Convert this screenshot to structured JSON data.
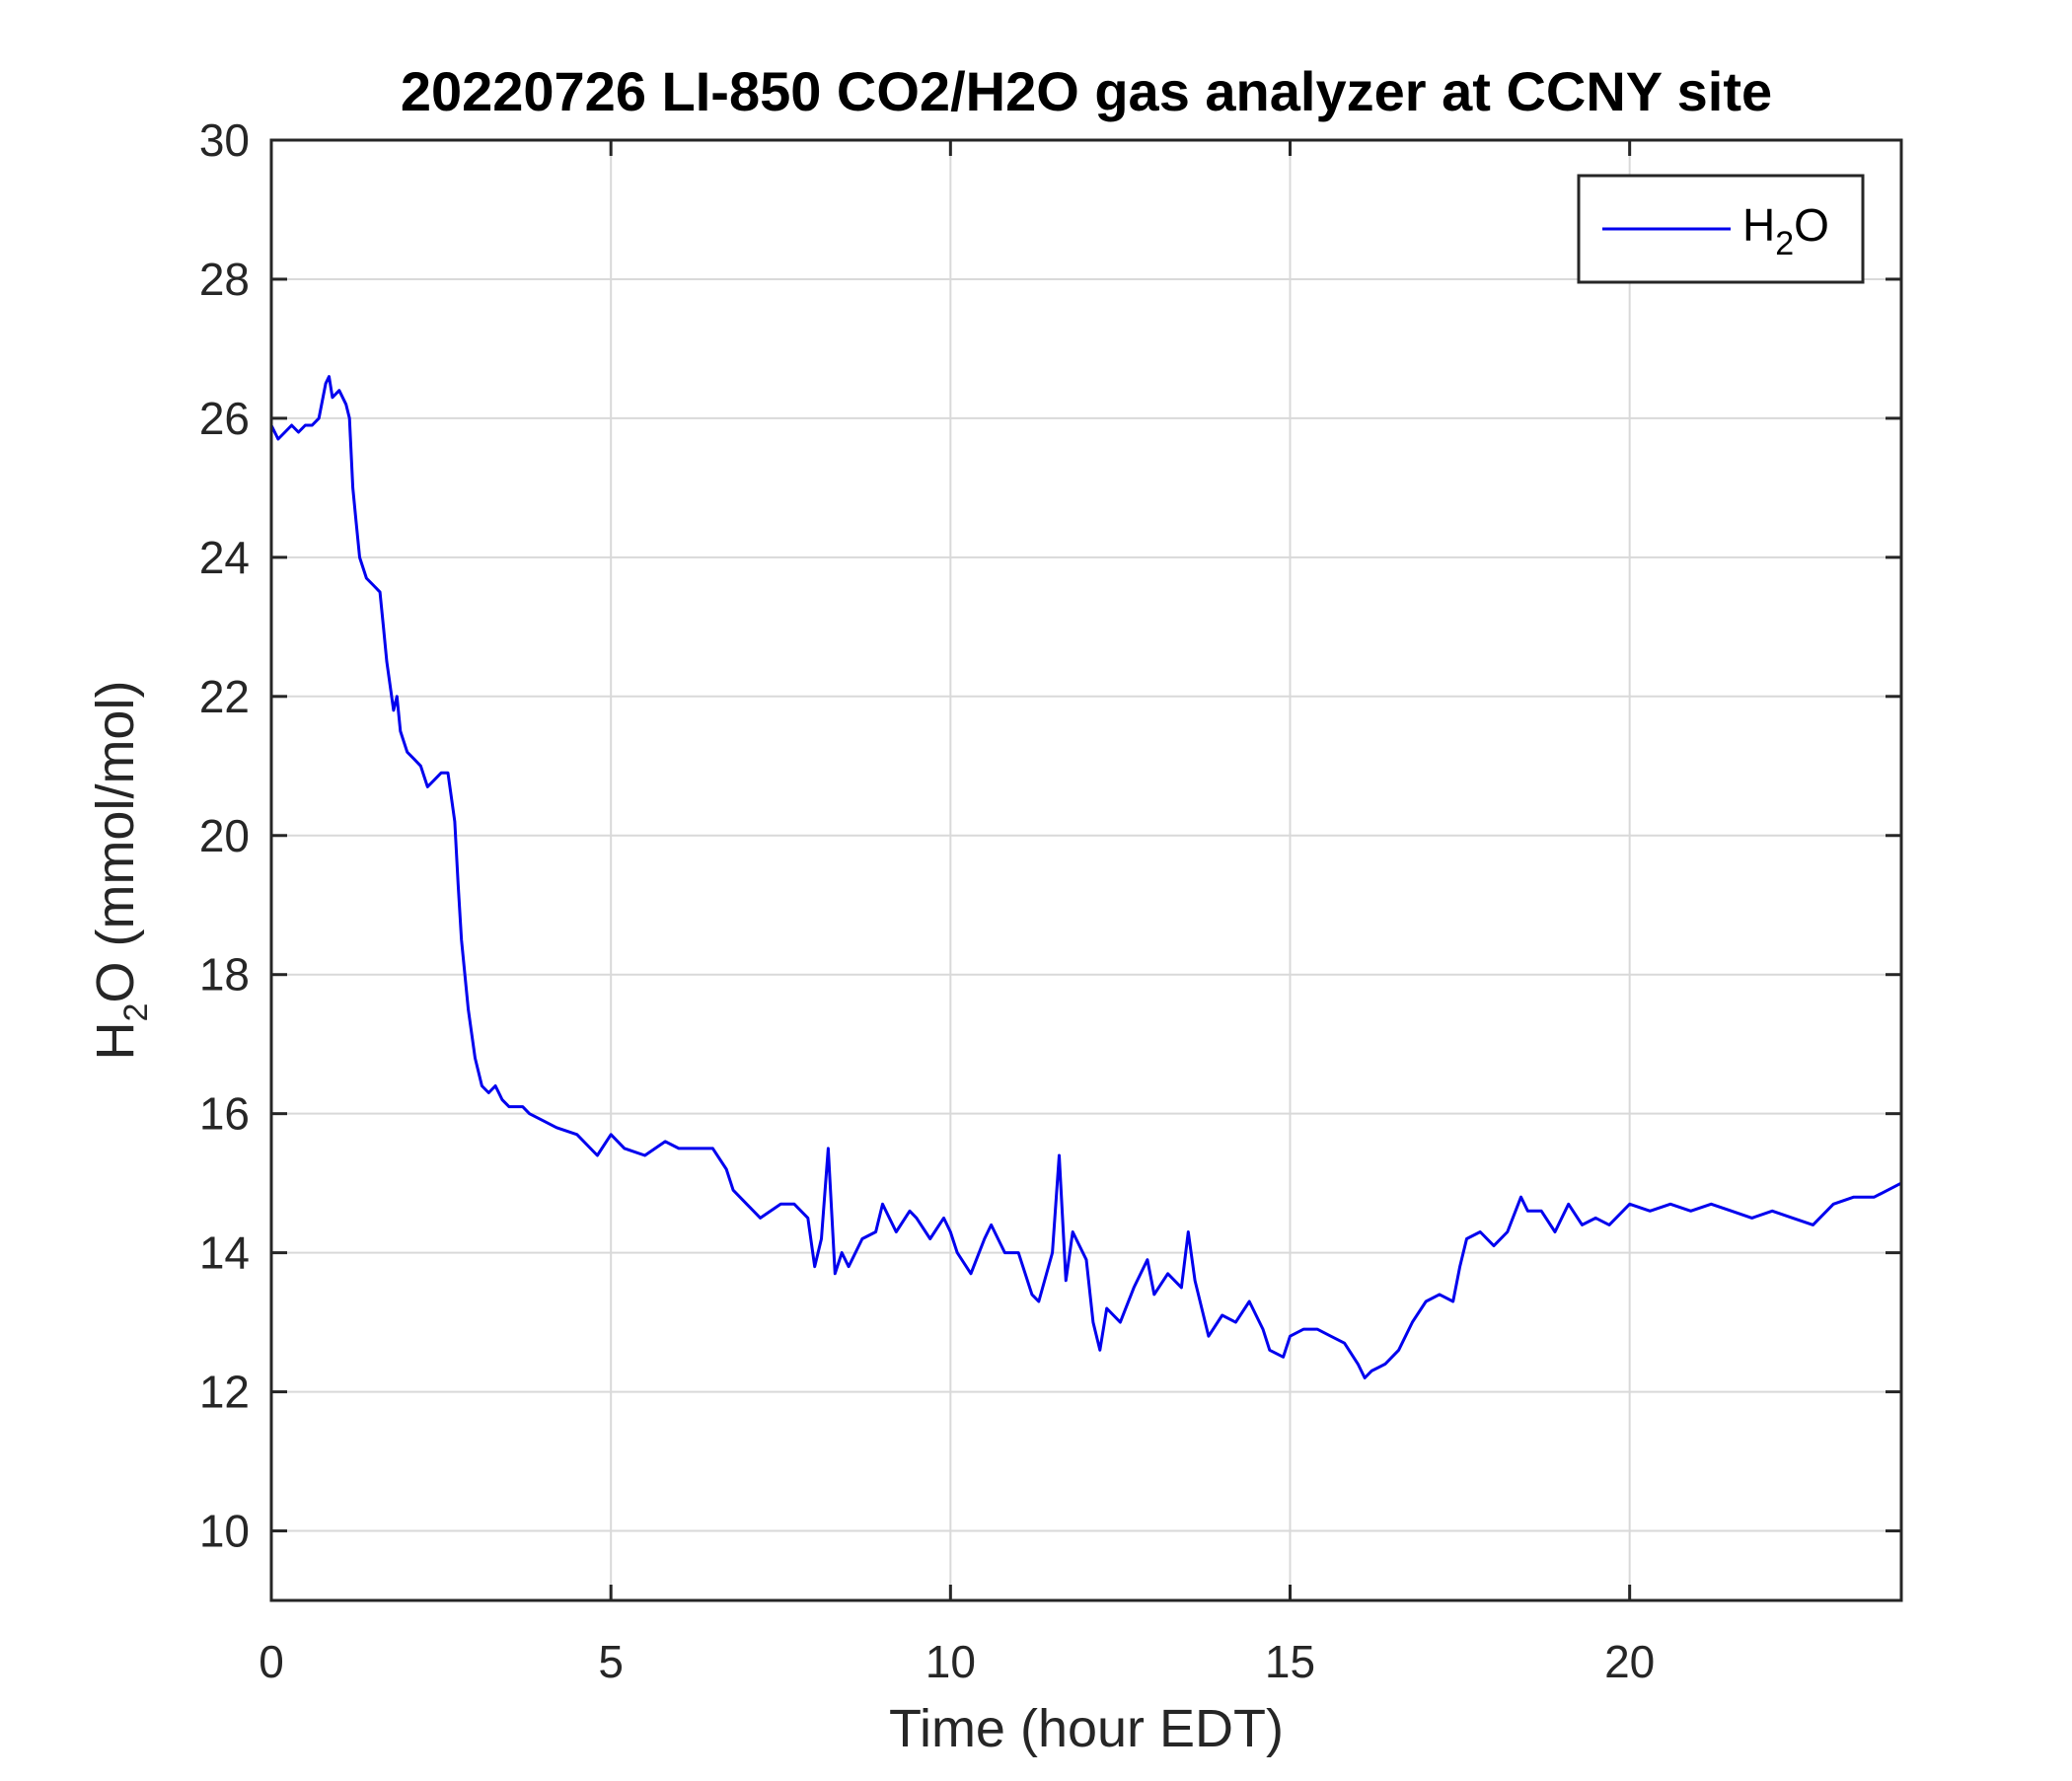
{
  "chart_data": {
    "type": "line",
    "title": "20220726 LI-850 CO2/H2O gas analyzer at CCNY site",
    "xlabel": "Time (hour EDT)",
    "ylabel": {
      "main": "H",
      "sub": "2",
      "rest": "O (mmol/mol)"
    },
    "xlim": [
      0,
      24
    ],
    "ylim": [
      9,
      30
    ],
    "xticks": [
      0,
      5,
      10,
      15,
      20
    ],
    "yticks": [
      10,
      12,
      14,
      16,
      18,
      20,
      22,
      24,
      26,
      28,
      30
    ],
    "grid": true,
    "legend": {
      "placement": "top-right",
      "entries": [
        {
          "main": "H",
          "sub": "2",
          "rest": "O"
        }
      ]
    },
    "colors": {
      "series": "#0000ee",
      "grid": "#d9d9d9",
      "axis": "#262626"
    },
    "series": [
      {
        "name": "H2O",
        "x": [
          0.0,
          0.1,
          0.2,
          0.3,
          0.4,
          0.5,
          0.6,
          0.7,
          0.8,
          0.85,
          0.9,
          1.0,
          1.1,
          1.15,
          1.2,
          1.25,
          1.3,
          1.4,
          1.5,
          1.6,
          1.65,
          1.7,
          1.8,
          1.85,
          1.9,
          2.0,
          2.1,
          2.2,
          2.3,
          2.4,
          2.5,
          2.6,
          2.7,
          2.75,
          2.8,
          2.9,
          3.0,
          3.1,
          3.2,
          3.3,
          3.4,
          3.5,
          3.7,
          3.8,
          4.0,
          4.2,
          4.5,
          4.8,
          5.0,
          5.2,
          5.5,
          5.8,
          6.0,
          6.3,
          6.5,
          6.7,
          6.8,
          7.0,
          7.2,
          7.5,
          7.7,
          7.9,
          8.0,
          8.1,
          8.2,
          8.3,
          8.4,
          8.5,
          8.7,
          8.9,
          9.0,
          9.2,
          9.4,
          9.5,
          9.7,
          9.9,
          10.0,
          10.1,
          10.3,
          10.5,
          10.6,
          10.8,
          11.0,
          11.2,
          11.3,
          11.5,
          11.6,
          11.7,
          11.8,
          12.0,
          12.1,
          12.2,
          12.3,
          12.5,
          12.7,
          12.9,
          13.0,
          13.2,
          13.4,
          13.5,
          13.6,
          13.8,
          14.0,
          14.2,
          14.4,
          14.6,
          14.7,
          14.9,
          15.0,
          15.2,
          15.4,
          15.6,
          15.8,
          16.0,
          16.1,
          16.2,
          16.4,
          16.6,
          16.8,
          17.0,
          17.2,
          17.4,
          17.5,
          17.6,
          17.8,
          18.0,
          18.2,
          18.4,
          18.5,
          18.7,
          18.9,
          19.1,
          19.3,
          19.5,
          19.7,
          20.0,
          20.3,
          20.6,
          20.9,
          21.2,
          21.5,
          21.8,
          22.1,
          22.4,
          22.7,
          23.0,
          23.3,
          23.6,
          24.0
        ],
        "values": [
          25.9,
          25.7,
          25.8,
          25.9,
          25.8,
          25.9,
          25.9,
          26.0,
          26.5,
          26.6,
          26.3,
          26.4,
          26.2,
          26.0,
          25.0,
          24.5,
          24.0,
          23.7,
          23.6,
          23.5,
          23.0,
          22.5,
          21.8,
          22.0,
          21.5,
          21.2,
          21.1,
          21.0,
          20.7,
          20.8,
          20.9,
          20.9,
          20.2,
          19.3,
          18.5,
          17.5,
          16.8,
          16.4,
          16.3,
          16.4,
          16.2,
          16.1,
          16.1,
          16.0,
          15.9,
          15.8,
          15.7,
          15.4,
          15.7,
          15.5,
          15.4,
          15.6,
          15.5,
          15.5,
          15.5,
          15.2,
          14.9,
          14.7,
          14.5,
          14.7,
          14.7,
          14.5,
          13.8,
          14.2,
          15.5,
          13.7,
          14.0,
          13.8,
          14.2,
          14.3,
          14.7,
          14.3,
          14.6,
          14.5,
          14.2,
          14.5,
          14.3,
          14.0,
          13.7,
          14.2,
          14.4,
          14.0,
          14.0,
          13.4,
          13.3,
          14.0,
          15.4,
          13.6,
          14.3,
          13.9,
          13.0,
          12.6,
          13.2,
          13.0,
          13.5,
          13.9,
          13.4,
          13.7,
          13.5,
          14.3,
          13.6,
          12.8,
          13.1,
          13.0,
          13.3,
          12.9,
          12.6,
          12.5,
          12.8,
          12.9,
          12.9,
          12.8,
          12.7,
          12.4,
          12.2,
          12.3,
          12.4,
          12.6,
          13.0,
          13.3,
          13.4,
          13.3,
          13.8,
          14.2,
          14.3,
          14.1,
          14.3,
          14.8,
          14.6,
          14.6,
          14.3,
          14.7,
          14.4,
          14.5,
          14.4,
          14.7,
          14.6,
          14.7,
          14.6,
          14.7,
          14.6,
          14.5,
          14.6,
          14.5,
          14.4,
          14.7,
          14.8,
          14.8,
          15.0
        ]
      }
    ]
  }
}
